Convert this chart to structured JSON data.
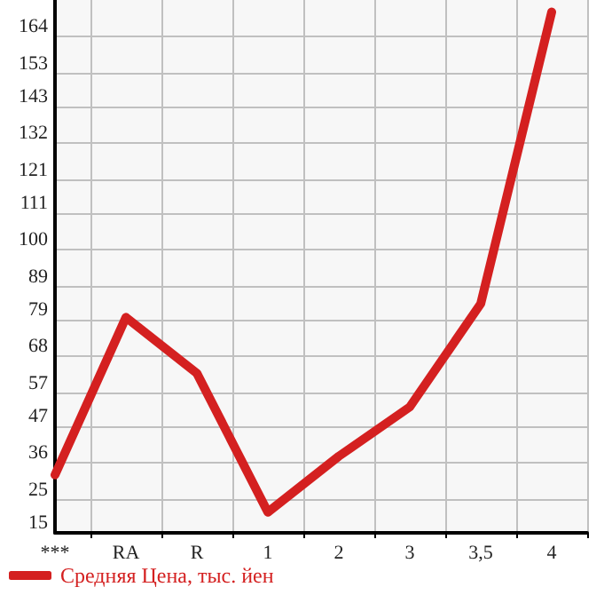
{
  "chart_data": {
    "type": "line",
    "categories": [
      "***",
      "RA",
      "R",
      "1",
      "2",
      "3",
      "3,5",
      "4"
    ],
    "series": [
      {
        "name": "Средняя Цена, тыс. йен",
        "color": "#d42020",
        "values": [
          32.4,
          79.7,
          62.9,
          21.2,
          38.0,
          52.8,
          83.8,
          171.4
        ]
      }
    ],
    "ylim": [
      15,
      175
    ],
    "yticks": [
      15,
      25,
      36,
      47,
      57,
      68,
      79,
      89,
      100,
      111,
      121,
      132,
      143,
      153,
      164
    ],
    "grid": true,
    "legend": "bottom",
    "marker": "none",
    "line_style": "solid"
  }
}
